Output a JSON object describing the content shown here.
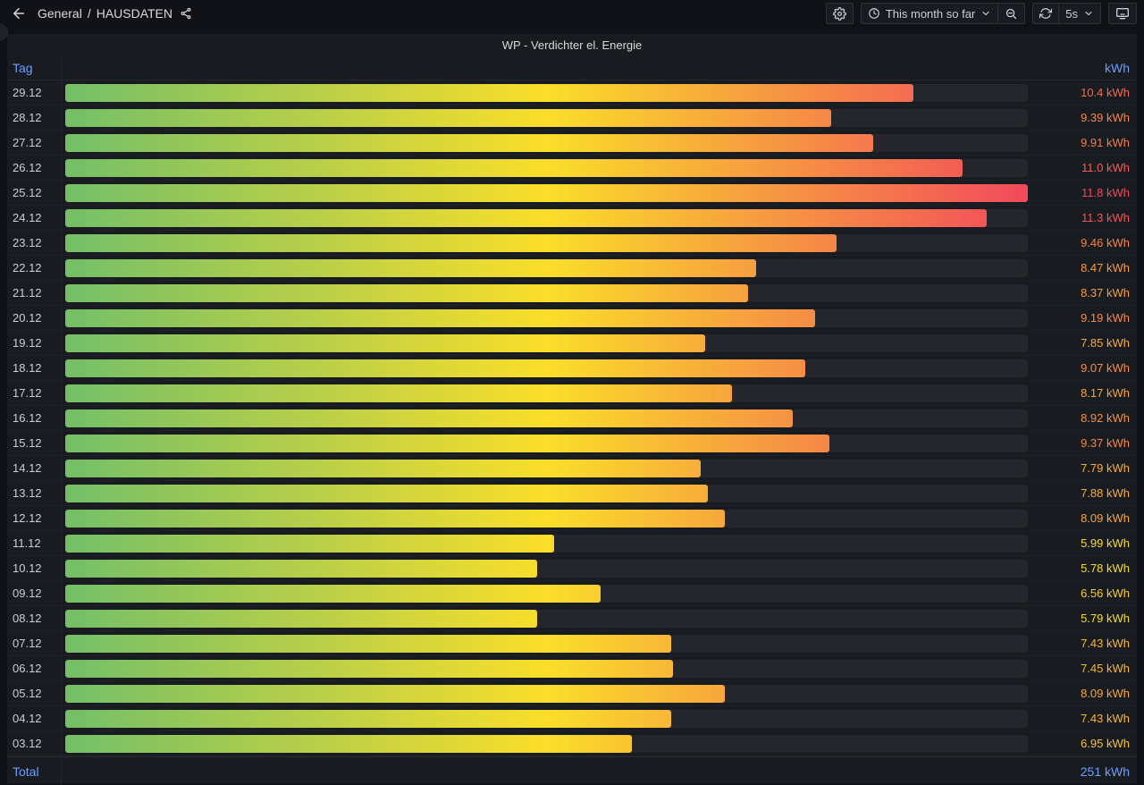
{
  "topnav": {
    "breadcrumb": {
      "section": "General",
      "separator": "/",
      "dashboard": "HAUSDATEN"
    },
    "time_picker": {
      "label": "This month so far"
    },
    "refresh": {
      "interval": "5s"
    }
  },
  "icons": {
    "back": "arrow-left-icon",
    "share": "share-alt-icon",
    "settings": "gear-icon",
    "clock": "clock-icon",
    "zoom_out": "zoom-out-icon",
    "refresh": "refresh-icon",
    "kiosk": "monitor-icon",
    "chevron": "chevron-down-icon"
  },
  "panel": {
    "title": "WP - Verdichter el. Energie"
  },
  "table": {
    "header": {
      "left": "Tag",
      "right": "kWh"
    },
    "footer": {
      "label": "Total",
      "value": "251 kWh"
    }
  },
  "colors": {
    "background": "#111217",
    "panel": "#181b1f",
    "track": "#24262b",
    "accent_blue": "#6e9fff",
    "scale_green": "#73bf69",
    "scale_yellow": "#fade2a",
    "scale_red": "#f2495c"
  },
  "chart_data": {
    "type": "bar",
    "orientation": "horizontal",
    "title": "WP - Verdichter el. Energie",
    "xlabel": "kWh",
    "ylabel": "Tag",
    "categories": [
      "29.12",
      "28.12",
      "27.12",
      "26.12",
      "25.12",
      "24.12",
      "23.12",
      "22.12",
      "21.12",
      "20.12",
      "19.12",
      "18.12",
      "17.12",
      "16.12",
      "15.12",
      "14.12",
      "13.12",
      "12.12",
      "11.12",
      "10.12",
      "09.12",
      "08.12",
      "07.12",
      "06.12",
      "05.12",
      "04.12",
      "03.12"
    ],
    "values": [
      10.4,
      9.39,
      9.91,
      11.0,
      11.8,
      11.3,
      9.46,
      8.47,
      8.37,
      9.19,
      7.85,
      9.07,
      8.17,
      8.92,
      9.37,
      7.79,
      7.88,
      8.09,
      5.99,
      5.78,
      6.56,
      5.79,
      7.43,
      7.45,
      8.09,
      7.43,
      6.95
    ],
    "value_labels": [
      "10.4 kWh",
      "9.39 kWh",
      "9.91 kWh",
      "11.0 kWh",
      "11.8 kWh",
      "11.3 kWh",
      "9.46 kWh",
      "8.47 kWh",
      "8.37 kWh",
      "9.19 kWh",
      "7.85 kWh",
      "9.07 kWh",
      "8.17 kWh",
      "8.92 kWh",
      "9.37 kWh",
      "7.79 kWh",
      "7.88 kWh",
      "8.09 kWh",
      "5.99 kWh",
      "5.78 kWh",
      "6.56 kWh",
      "5.79 kWh",
      "7.43 kWh",
      "7.45 kWh",
      "8.09 kWh",
      "7.43 kWh",
      "6.95 kWh"
    ],
    "unit": "kWh",
    "xlim": [
      0,
      11.8
    ],
    "total_label": "Total",
    "total_value": "251 kWh",
    "color_scheme": "continuous-green-yellow-red",
    "legend": "off",
    "grid": "off"
  }
}
